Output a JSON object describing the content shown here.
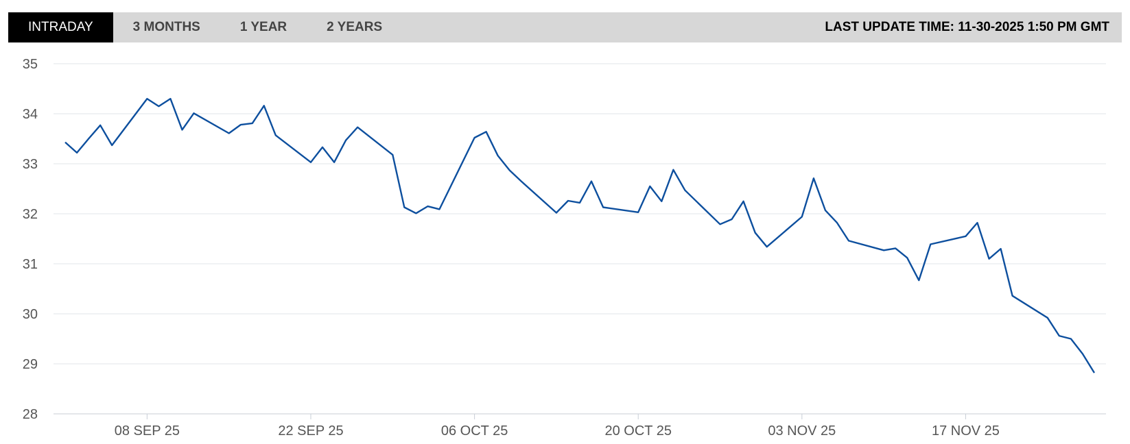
{
  "tabs": [
    "INTRADAY",
    "3 MONTHS",
    "1 YEAR",
    "2 YEARS"
  ],
  "active_tab": 0,
  "last_update": "LAST UPDATE TIME: 11-30-2025 1:50 PM GMT",
  "chart_data": {
    "type": "line",
    "color": "#0d4f9e",
    "grid": true,
    "x": [
      "2025-09-01",
      "2025-09-02",
      "2025-09-03",
      "2025-09-04",
      "2025-09-05",
      "2025-09-08",
      "2025-09-09",
      "2025-09-10",
      "2025-09-11",
      "2025-09-12",
      "2025-09-15",
      "2025-09-16",
      "2025-09-17",
      "2025-09-18",
      "2025-09-19",
      "2025-09-22",
      "2025-09-23",
      "2025-09-24",
      "2025-09-25",
      "2025-09-26",
      "2025-09-29",
      "2025-09-30",
      "2025-10-01",
      "2025-10-02",
      "2025-10-03",
      "2025-10-06",
      "2025-10-07",
      "2025-10-08",
      "2025-10-09",
      "2025-10-10",
      "2025-10-13",
      "2025-10-14",
      "2025-10-15",
      "2025-10-16",
      "2025-10-17",
      "2025-10-20",
      "2025-10-21",
      "2025-10-22",
      "2025-10-23",
      "2025-10-24",
      "2025-10-27",
      "2025-10-28",
      "2025-10-29",
      "2025-10-30",
      "2025-10-31",
      "2025-11-03",
      "2025-11-04",
      "2025-11-05",
      "2025-11-06",
      "2025-11-07",
      "2025-11-10",
      "2025-11-11",
      "2025-11-12",
      "2025-11-13",
      "2025-11-14",
      "2025-11-17",
      "2025-11-18",
      "2025-11-19",
      "2025-11-20",
      "2025-11-21",
      "2025-11-24",
      "2025-11-25",
      "2025-11-26",
      "2025-11-27",
      "2025-11-28"
    ],
    "values": [
      33.43,
      33.22,
      33.5,
      33.77,
      33.37,
      34.3,
      34.15,
      34.3,
      33.68,
      34.01,
      33.61,
      33.78,
      33.81,
      34.16,
      33.57,
      33.03,
      33.33,
      33.03,
      33.47,
      33.73,
      33.18,
      32.13,
      32.01,
      32.15,
      32.09,
      33.52,
      33.64,
      33.16,
      32.87,
      32.65,
      32.02,
      32.26,
      32.22,
      32.65,
      32.13,
      32.03,
      32.55,
      32.25,
      32.88,
      32.47,
      31.79,
      31.89,
      32.25,
      31.62,
      31.34,
      31.94,
      32.71,
      32.07,
      31.82,
      31.46,
      31.27,
      31.31,
      31.12,
      30.67,
      31.39,
      31.55,
      31.82,
      31.1,
      31.3,
      30.36,
      29.92,
      29.56,
      29.5,
      29.2,
      28.82
    ],
    "xlim": [
      "2025-08-31",
      "2025-11-29"
    ],
    "xticks": [
      {
        "value": "2025-09-08",
        "label": "08 SEP 25"
      },
      {
        "value": "2025-09-22",
        "label": "22 SEP 25"
      },
      {
        "value": "2025-10-06",
        "label": "06 OCT 25"
      },
      {
        "value": "2025-10-20",
        "label": "20 OCT 25"
      },
      {
        "value": "2025-11-03",
        "label": "03 NOV 25"
      },
      {
        "value": "2025-11-17",
        "label": "17 NOV 25"
      }
    ],
    "ylim": [
      28,
      35
    ],
    "yticks": [
      28,
      29,
      30,
      31,
      32,
      33,
      34,
      35
    ]
  }
}
